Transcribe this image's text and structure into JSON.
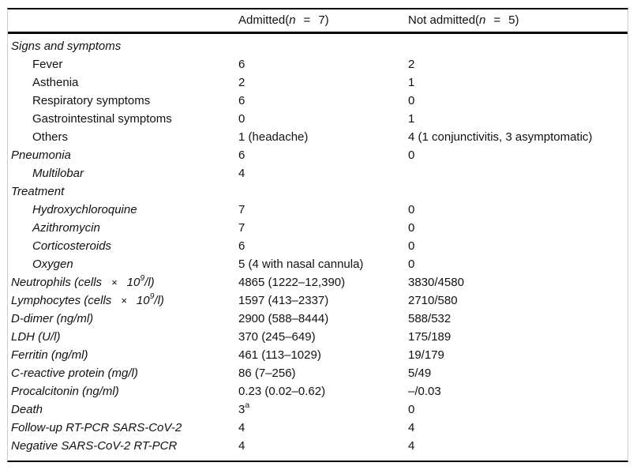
{
  "table": {
    "header": {
      "admitted": {
        "pre": "Admitted(",
        "n": "n",
        "eq": "=",
        "count": "7)"
      },
      "not_admitted": {
        "pre": "Not admitted(",
        "n": "n",
        "eq": "=",
        "count": "5)"
      }
    },
    "rows": [
      {
        "label": "Signs and symptoms",
        "italic": true,
        "indent": false,
        "admitted": "",
        "not_admitted": ""
      },
      {
        "label": "Fever",
        "italic": false,
        "indent": true,
        "admitted": "6",
        "not_admitted": "2"
      },
      {
        "label": "Asthenia",
        "italic": false,
        "indent": true,
        "admitted": "2",
        "not_admitted": "1"
      },
      {
        "label": "Respiratory symptoms",
        "italic": false,
        "indent": true,
        "admitted": "6",
        "not_admitted": "0"
      },
      {
        "label": "Gastrointestinal symptoms",
        "italic": false,
        "indent": true,
        "admitted": "0",
        "not_admitted": "1"
      },
      {
        "label": "Others",
        "italic": false,
        "indent": true,
        "admitted": "1 (headache)",
        "not_admitted": "4 (1 conjunctivitis, 3 asymptomatic)"
      },
      {
        "label": "Pneumonia",
        "italic": true,
        "indent": false,
        "admitted": "6",
        "not_admitted": "0"
      },
      {
        "label": "Multilobar",
        "italic": true,
        "indent": true,
        "admitted": "4",
        "not_admitted": ""
      },
      {
        "label": "Treatment",
        "italic": true,
        "indent": false,
        "admitted": "",
        "not_admitted": ""
      },
      {
        "label": "Hydroxychloroquine",
        "italic": true,
        "indent": true,
        "admitted": "7",
        "not_admitted": "0"
      },
      {
        "label": "Azithromycin",
        "italic": true,
        "indent": true,
        "admitted": "7",
        "not_admitted": "0"
      },
      {
        "label": "Corticosteroids",
        "italic": true,
        "indent": true,
        "admitted": "6",
        "not_admitted": "0"
      },
      {
        "label": "Oxygen",
        "italic": true,
        "indent": true,
        "admitted": "5 (4 with nasal cannula)",
        "not_admitted": "0"
      },
      {
        "label": {
          "pre": "Neutrophils (cells",
          "times": "×",
          "base": "10",
          "sup": "9",
          "post": "/l)"
        },
        "italic": true,
        "indent": false,
        "admitted": "4865 (1222–12,390)",
        "not_admitted": "3830/4580"
      },
      {
        "label": {
          "pre": "Lymphocytes (cells",
          "times": "×",
          "base": "10",
          "sup": "9",
          "post": "/l)"
        },
        "italic": true,
        "indent": false,
        "admitted": "1597 (413–2337)",
        "not_admitted": "2710/580"
      },
      {
        "label": "D-dimer (ng/ml)",
        "italic": true,
        "indent": false,
        "admitted": "2900 (588–8444)",
        "not_admitted": "588/532"
      },
      {
        "label": "LDH (U/l)",
        "italic": true,
        "indent": false,
        "admitted": "370 (245–649)",
        "not_admitted": "175/189"
      },
      {
        "label": "Ferritin (ng/ml)",
        "italic": true,
        "indent": false,
        "admitted": "461 (113–1029)",
        "not_admitted": "19/179"
      },
      {
        "label": "C-reactive protein (mg/l)",
        "italic": true,
        "indent": false,
        "admitted": "86 (7–256)",
        "not_admitted": "5/49"
      },
      {
        "label": "Procalcitonin (ng/ml)",
        "italic": true,
        "indent": false,
        "admitted": "0.23 (0.02–0.62)",
        "not_admitted": "–/0.03"
      },
      {
        "label": "Death",
        "italic": true,
        "indent": false,
        "admitted": {
          "text": "3",
          "sup": "a"
        },
        "not_admitted": "0"
      },
      {
        "label": "Follow-up RT-PCR SARS-CoV-2",
        "italic": true,
        "indent": false,
        "admitted": "4",
        "not_admitted": "4"
      },
      {
        "label": "Negative SARS-CoV-2 RT-PCR",
        "italic": true,
        "indent": false,
        "admitted": "4",
        "not_admitted": "4"
      }
    ]
  },
  "colors": {
    "rule": "#000000",
    "side_border": "#cccccc",
    "text": "#111111",
    "background": "#ffffff"
  }
}
